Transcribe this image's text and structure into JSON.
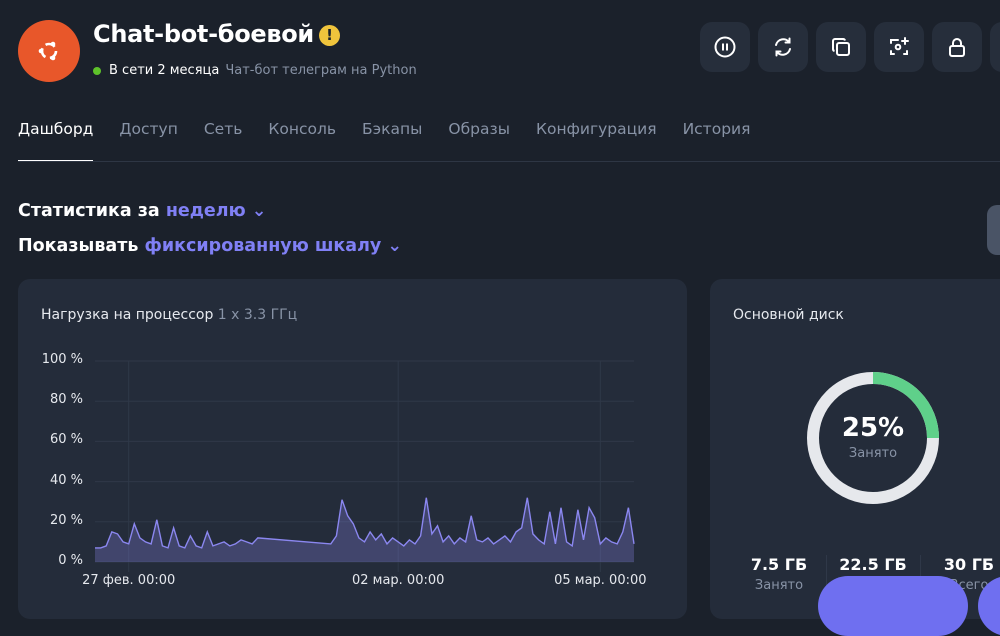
{
  "header": {
    "title": "Chat-bot-боевой",
    "status": "В сети 2 месяца",
    "description": "Чат-бот телеграм на Python",
    "os_icon": "ubuntu-icon",
    "avatar_color": "#e8572a",
    "warning_icon": "exclamation-icon",
    "status_color": "#5ec22a"
  },
  "toolbar": [
    {
      "icon": "pause-icon"
    },
    {
      "icon": "refresh-icon"
    },
    {
      "icon": "copy-icon"
    },
    {
      "icon": "snapshot-add-icon"
    },
    {
      "icon": "lock-icon"
    }
  ],
  "tabs": [
    {
      "label": "Дашборд",
      "active": true
    },
    {
      "label": "Доступ"
    },
    {
      "label": "Сеть"
    },
    {
      "label": "Консоль"
    },
    {
      "label": "Бэкапы"
    },
    {
      "label": "Образы"
    },
    {
      "label": "Конфигурация"
    },
    {
      "label": "История"
    }
  ],
  "filters": {
    "period_prefix": "Статистика за",
    "period_value": "неделю",
    "scale_prefix": "Показывать",
    "scale_value": "фиксированную шкалу"
  },
  "cpu_card": {
    "title": "Нагрузка на процессор",
    "meta": "1 x 3.3 ГГц"
  },
  "disk_card": {
    "title": "Основной диск",
    "percent": "25%",
    "percent_value": 25,
    "percent_label": "Занято",
    "used": "7.5 ГБ",
    "used_label": "Занято",
    "free": "22.5 ГБ",
    "total": "30 ГБ",
    "total_label": "Всего",
    "used_color": "#5fd08a"
  },
  "accent": "#8080f5",
  "chart_data": {
    "type": "area",
    "ylim": [
      0,
      100
    ],
    "yticks": [
      "0 %",
      "20 %",
      "40 %",
      "60 %",
      "80 %",
      "100 %"
    ],
    "ytick_values": [
      0,
      20,
      40,
      60,
      80,
      100
    ],
    "xticks": [
      {
        "label": "27 фев. 00:00",
        "at": "02-27 00:00"
      },
      {
        "label": "02 мар. 00:00",
        "at": "03-02 00:00"
      },
      {
        "label": "05 мар. 00:00",
        "at": "03-05 00:00"
      }
    ],
    "grid": true,
    "color": "#8b87f0",
    "x": [
      "02-26 12:00",
      "02-26 14:00",
      "02-26 16:00",
      "02-26 18:00",
      "02-26 20:00",
      "02-26 22:00",
      "02-27 00:00",
      "02-27 02:00",
      "02-27 04:00",
      "02-27 06:00",
      "02-27 08:00",
      "02-27 10:00",
      "02-27 12:00",
      "02-27 14:00",
      "02-27 16:00",
      "02-27 18:00",
      "02-27 20:00",
      "02-27 22:00",
      "02-28 00:00",
      "02-28 02:00",
      "02-28 04:00",
      "02-28 06:00",
      "02-28 08:00",
      "02-28 10:00",
      "02-28 12:00",
      "02-28 14:00",
      "02-28 16:00",
      "02-28 18:00",
      "02-28 20:00",
      "02-28 22:00",
      "03-01 00:00",
      "03-01 02:00",
      "03-01 04:00",
      "03-01 06:00",
      "03-01 08:00",
      "03-01 10:00",
      "03-01 12:00",
      "03-01 14:00",
      "03-01 16:00",
      "03-01 18:00",
      "03-01 20:00",
      "03-01 22:00",
      "03-02 00:00",
      "03-02 02:00",
      "03-02 04:00",
      "03-02 06:00",
      "03-02 08:00",
      "03-02 10:00",
      "03-02 12:00",
      "03-02 14:00",
      "03-02 16:00",
      "03-02 18:00",
      "03-02 20:00",
      "03-02 22:00",
      "03-03 00:00",
      "03-03 02:00",
      "03-03 04:00",
      "03-03 06:00",
      "03-03 08:00",
      "03-03 10:00",
      "03-03 12:00",
      "03-03 14:00",
      "03-03 16:00",
      "03-03 18:00",
      "03-03 20:00",
      "03-03 22:00",
      "03-04 00:00",
      "03-04 02:00",
      "03-04 04:00",
      "03-04 06:00",
      "03-04 08:00",
      "03-04 10:00",
      "03-04 12:00",
      "03-04 14:00",
      "03-04 16:00",
      "03-04 18:00",
      "03-04 20:00",
      "03-04 22:00",
      "03-05 00:00",
      "03-05 02:00",
      "03-05 04:00",
      "03-05 06:00",
      "03-05 08:00",
      "03-05 10:00",
      "03-05 12:00"
    ],
    "values": [
      7,
      7,
      8,
      15,
      14,
      10,
      9,
      19,
      12,
      10,
      9,
      21,
      8,
      7,
      17,
      8,
      7,
      13,
      8,
      7,
      15,
      8,
      9,
      10,
      8,
      9,
      11,
      10,
      9,
      12,
      9,
      13,
      31,
      23,
      19,
      12,
      10,
      15,
      11,
      14,
      9,
      12,
      10,
      8,
      11,
      9,
      13,
      32,
      14,
      18,
      10,
      13,
      9,
      12,
      10,
      23,
      11,
      10,
      12,
      9,
      11,
      13,
      10,
      15,
      17,
      32,
      14,
      11,
      9,
      25,
      9,
      27,
      10,
      8,
      26,
      11,
      27,
      22,
      9,
      12,
      10,
      9,
      15,
      27,
      9
    ]
  }
}
